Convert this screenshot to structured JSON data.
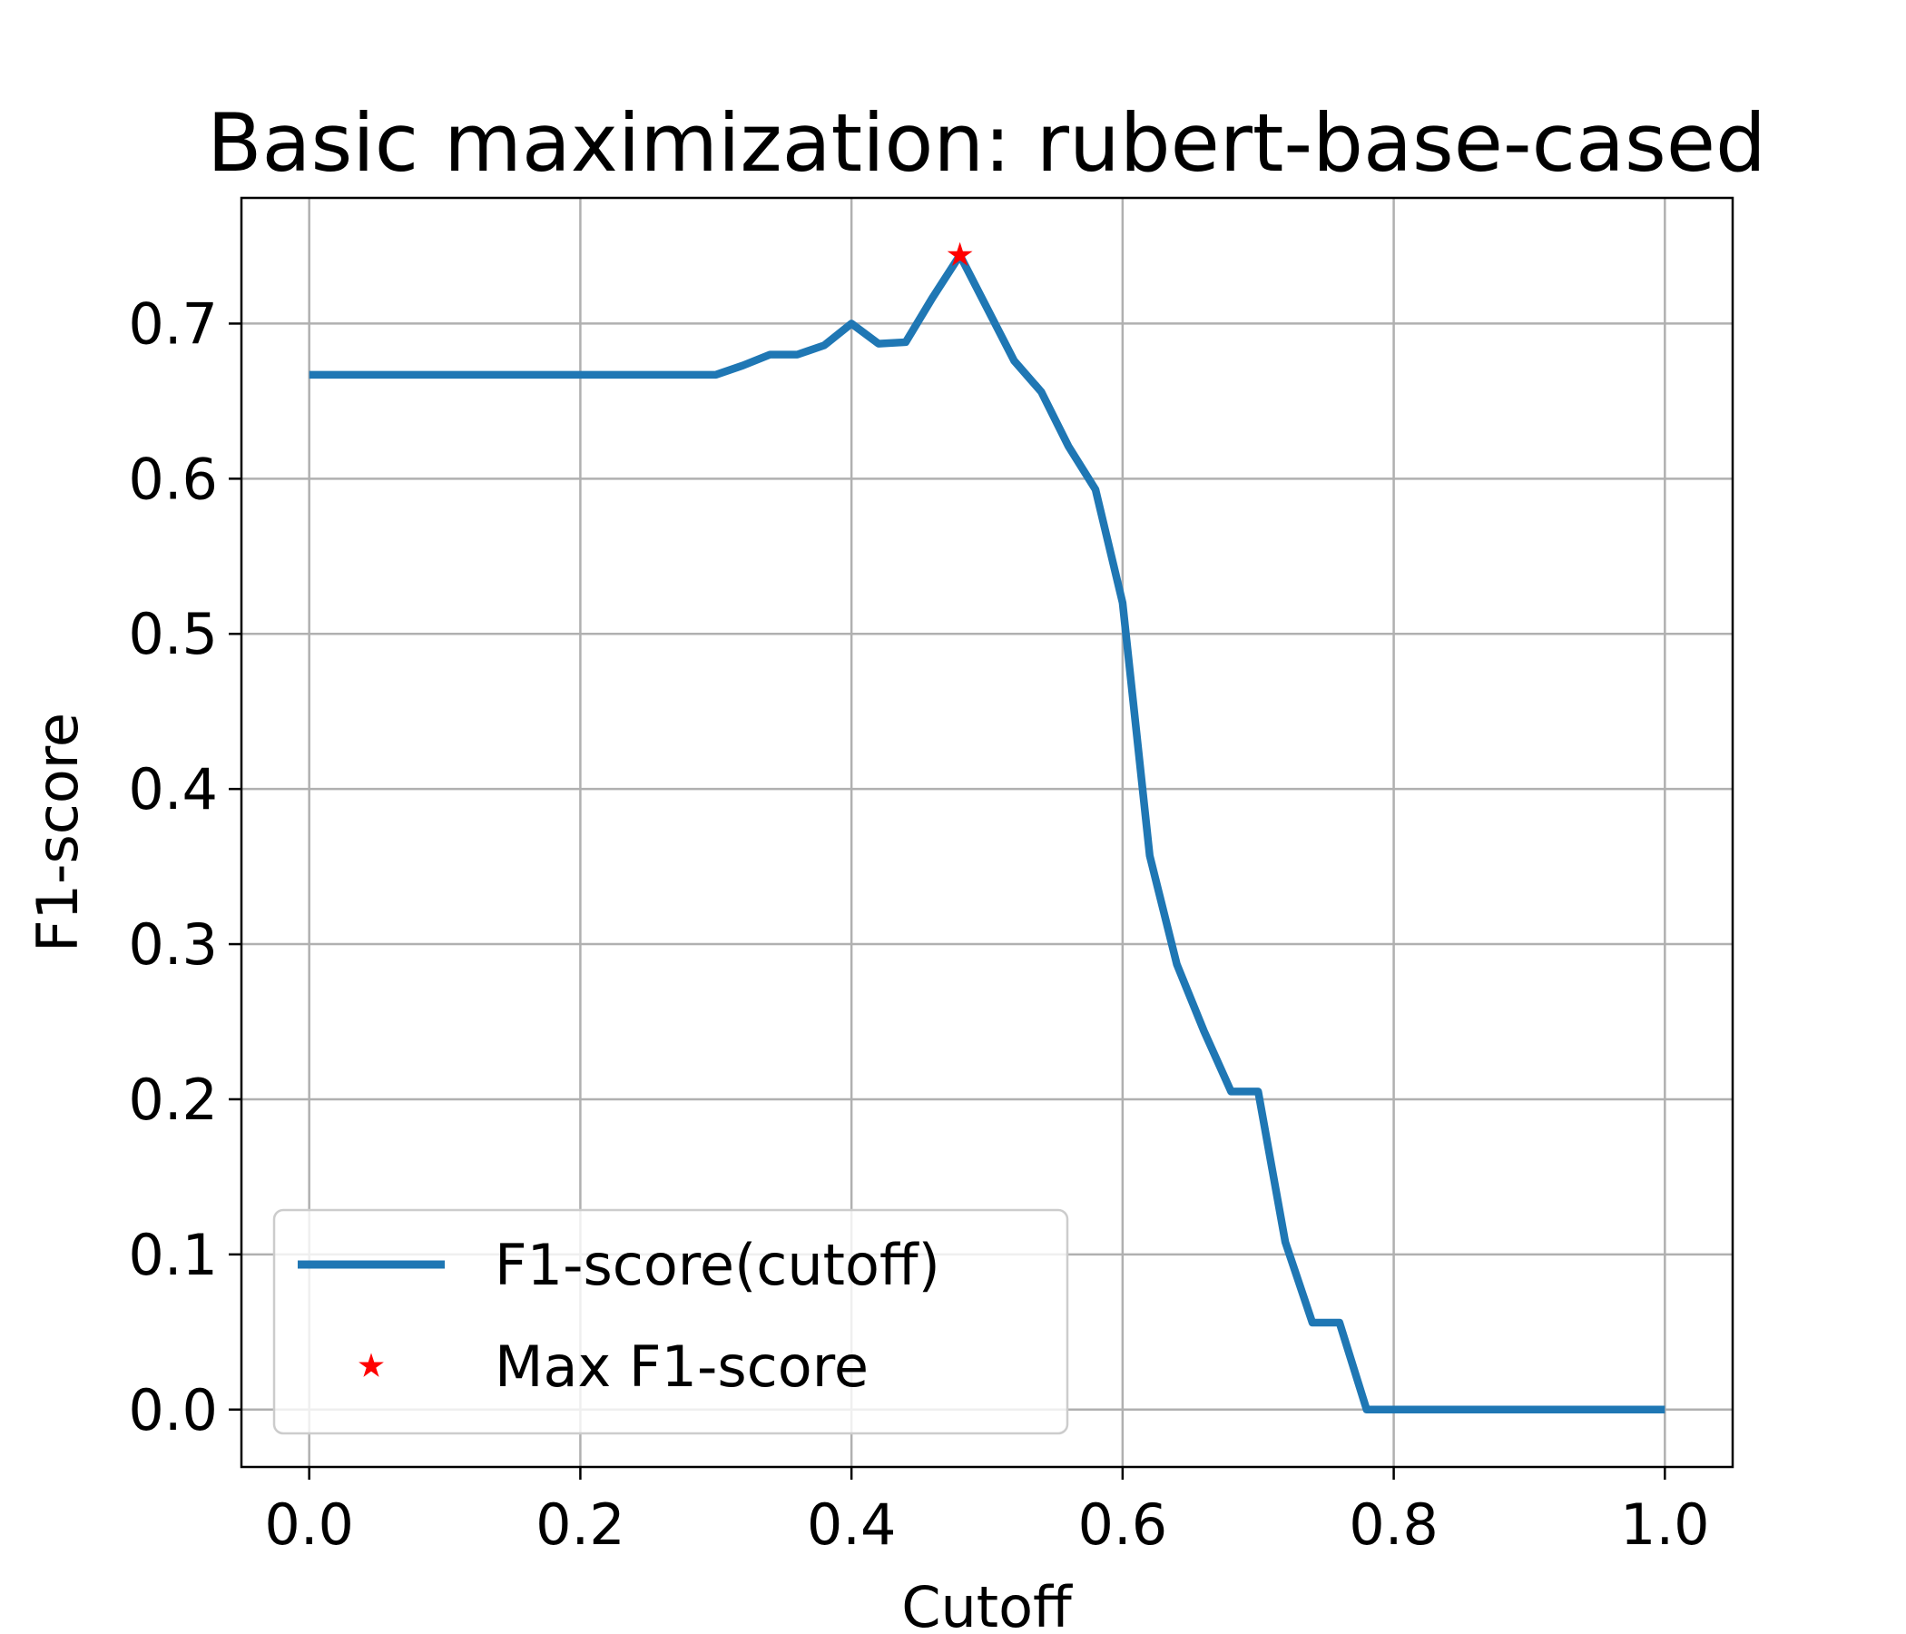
{
  "chart_data": {
    "type": "line",
    "title": "Basic maximization: rubert-base-cased",
    "xlabel": "Cutoff",
    "ylabel": "F1-score",
    "xlim": [
      -0.05,
      1.05
    ],
    "ylim": [
      -0.037,
      0.781
    ],
    "x_ticks": [
      0.0,
      0.2,
      0.4,
      0.6,
      0.8,
      1.0
    ],
    "x_tick_labels": [
      "0.0",
      "0.2",
      "0.4",
      "0.6",
      "0.8",
      "1.0"
    ],
    "y_ticks": [
      0.0,
      0.1,
      0.2,
      0.3,
      0.4,
      0.5,
      0.6,
      0.7
    ],
    "y_tick_labels": [
      "0.0",
      "0.1",
      "0.2",
      "0.3",
      "0.4",
      "0.5",
      "0.6",
      "0.7"
    ],
    "grid": true,
    "legend_position": "lower-left",
    "series": [
      {
        "name": "F1-score(cutoff)",
        "color": "#1f77b4",
        "style": "line",
        "x": [
          0.0,
          0.02,
          0.04,
          0.06,
          0.08,
          0.1,
          0.12,
          0.14,
          0.16,
          0.18,
          0.2,
          0.22,
          0.24,
          0.26,
          0.28,
          0.3,
          0.32,
          0.34,
          0.36,
          0.38,
          0.4,
          0.42,
          0.44,
          0.46,
          0.48,
          0.5,
          0.52,
          0.54,
          0.56,
          0.58,
          0.6,
          0.62,
          0.64,
          0.66,
          0.68,
          0.7,
          0.72,
          0.74,
          0.76,
          0.78,
          0.8,
          0.82,
          0.84,
          0.86,
          0.88,
          0.9,
          0.92,
          0.94,
          0.96,
          0.98,
          1.0
        ],
        "y": [
          0.667,
          0.667,
          0.667,
          0.667,
          0.667,
          0.667,
          0.667,
          0.667,
          0.667,
          0.667,
          0.667,
          0.667,
          0.667,
          0.667,
          0.667,
          0.667,
          0.673,
          0.68,
          0.68,
          0.686,
          0.7,
          0.687,
          0.688,
          0.717,
          0.744,
          0.71,
          0.676,
          0.656,
          0.621,
          0.593,
          0.52,
          0.357,
          0.287,
          0.244,
          0.205,
          0.205,
          0.108,
          0.056,
          0.056,
          0.0,
          0.0,
          0.0,
          0.0,
          0.0,
          0.0,
          0.0,
          0.0,
          0.0,
          0.0,
          0.0,
          0.0
        ]
      },
      {
        "name": "Max F1-score",
        "color": "#ff0000",
        "style": "marker-star",
        "x": [
          0.48
        ],
        "y": [
          0.744
        ]
      }
    ]
  }
}
